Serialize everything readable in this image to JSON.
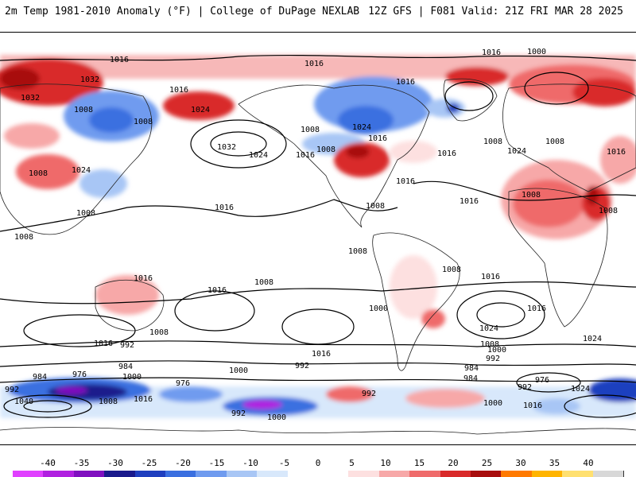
{
  "header": {
    "title_left": "2m Temp 1981-2010 Anomaly (°F) | College of DuPage NEXLAB",
    "title_right": "12Z GFS | F081 Valid: 21Z FRI MAR 28 2025"
  },
  "colorbar": {
    "ticks": [
      "-40",
      "-35",
      "-30",
      "-25",
      "-20",
      "-15",
      "-10",
      "-5",
      "0",
      "5",
      "10",
      "15",
      "20",
      "25",
      "30",
      "35",
      "40"
    ],
    "colors": [
      "#e040ff",
      "#b020e0",
      "#8010c0",
      "#1a1a8c",
      "#1f3fbf",
      "#3a6fe0",
      "#6f9bef",
      "#a8c6f5",
      "#d8e8fb",
      "#ffffff",
      "#ffffff",
      "#fde0e0",
      "#f7a8a8",
      "#ef6b6b",
      "#d92a2a",
      "#a80e0e",
      "#ff7a00",
      "#ffb400",
      "#ffe070",
      "#d8d8d8"
    ]
  },
  "isobar_labels": [
    "1016",
    "1024",
    "1016",
    "1000",
    "1016",
    "1032",
    "1008",
    "1016",
    "1016",
    "1008",
    "1032",
    "1024",
    "1016",
    "1008",
    "1024",
    "1032",
    "1024",
    "1016",
    "1016",
    "1008",
    "1024",
    "1008",
    "1016",
    "1008",
    "1016",
    "1008",
    "1024",
    "1016",
    "1008",
    "1008",
    "1008",
    "1008",
    "1016",
    "1016",
    "1008",
    "1008",
    "1016",
    "1008",
    "1016",
    "1008",
    "1016",
    "1000",
    "1016",
    "992",
    "984",
    "984",
    "976",
    "1000",
    "976",
    "992",
    "1000",
    "992",
    "1040",
    "1008",
    "1016",
    "992",
    "1000",
    "1008",
    "992",
    "1000",
    "984",
    "992",
    "976",
    "1024",
    "984",
    "1000",
    "1016",
    "992",
    "1016",
    "1024",
    "1024",
    "1008",
    "1016"
  ]
}
